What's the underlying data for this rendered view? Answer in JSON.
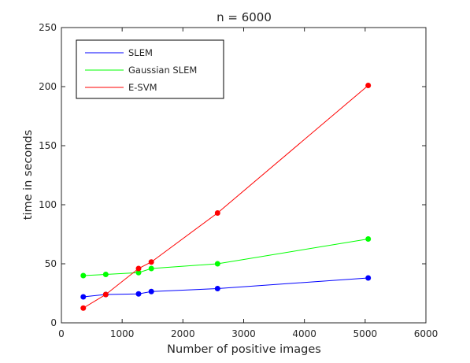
{
  "chart_data": {
    "type": "line",
    "title": "n = 6000",
    "xlabel": "Number of positive images",
    "ylabel": "time in seconds",
    "xlim": [
      0,
      6000
    ],
    "ylim": [
      0,
      250
    ],
    "xticks": [
      0,
      1000,
      2000,
      3000,
      4000,
      5000,
      6000
    ],
    "yticks": [
      0,
      50,
      100,
      150,
      200,
      250
    ],
    "grid": false,
    "legend_position": "top-left",
    "series": [
      {
        "name": "SLEM",
        "color": "#0000ff",
        "x": [
          360,
          730,
          1270,
          1480,
          2570,
          5050
        ],
        "y": [
          22,
          24,
          24.5,
          26.5,
          29,
          38
        ]
      },
      {
        "name": "Gaussian SLEM",
        "color": "#00ff00",
        "x": [
          360,
          730,
          1270,
          1480,
          2570,
          5050
        ],
        "y": [
          40,
          41,
          42.5,
          46,
          50,
          71
        ]
      },
      {
        "name": "E-SVM",
        "color": "#ff0000",
        "x": [
          360,
          730,
          1270,
          1480,
          2570,
          5050
        ],
        "y": [
          12.5,
          24,
          46,
          51.5,
          93,
          201
        ]
      }
    ]
  }
}
